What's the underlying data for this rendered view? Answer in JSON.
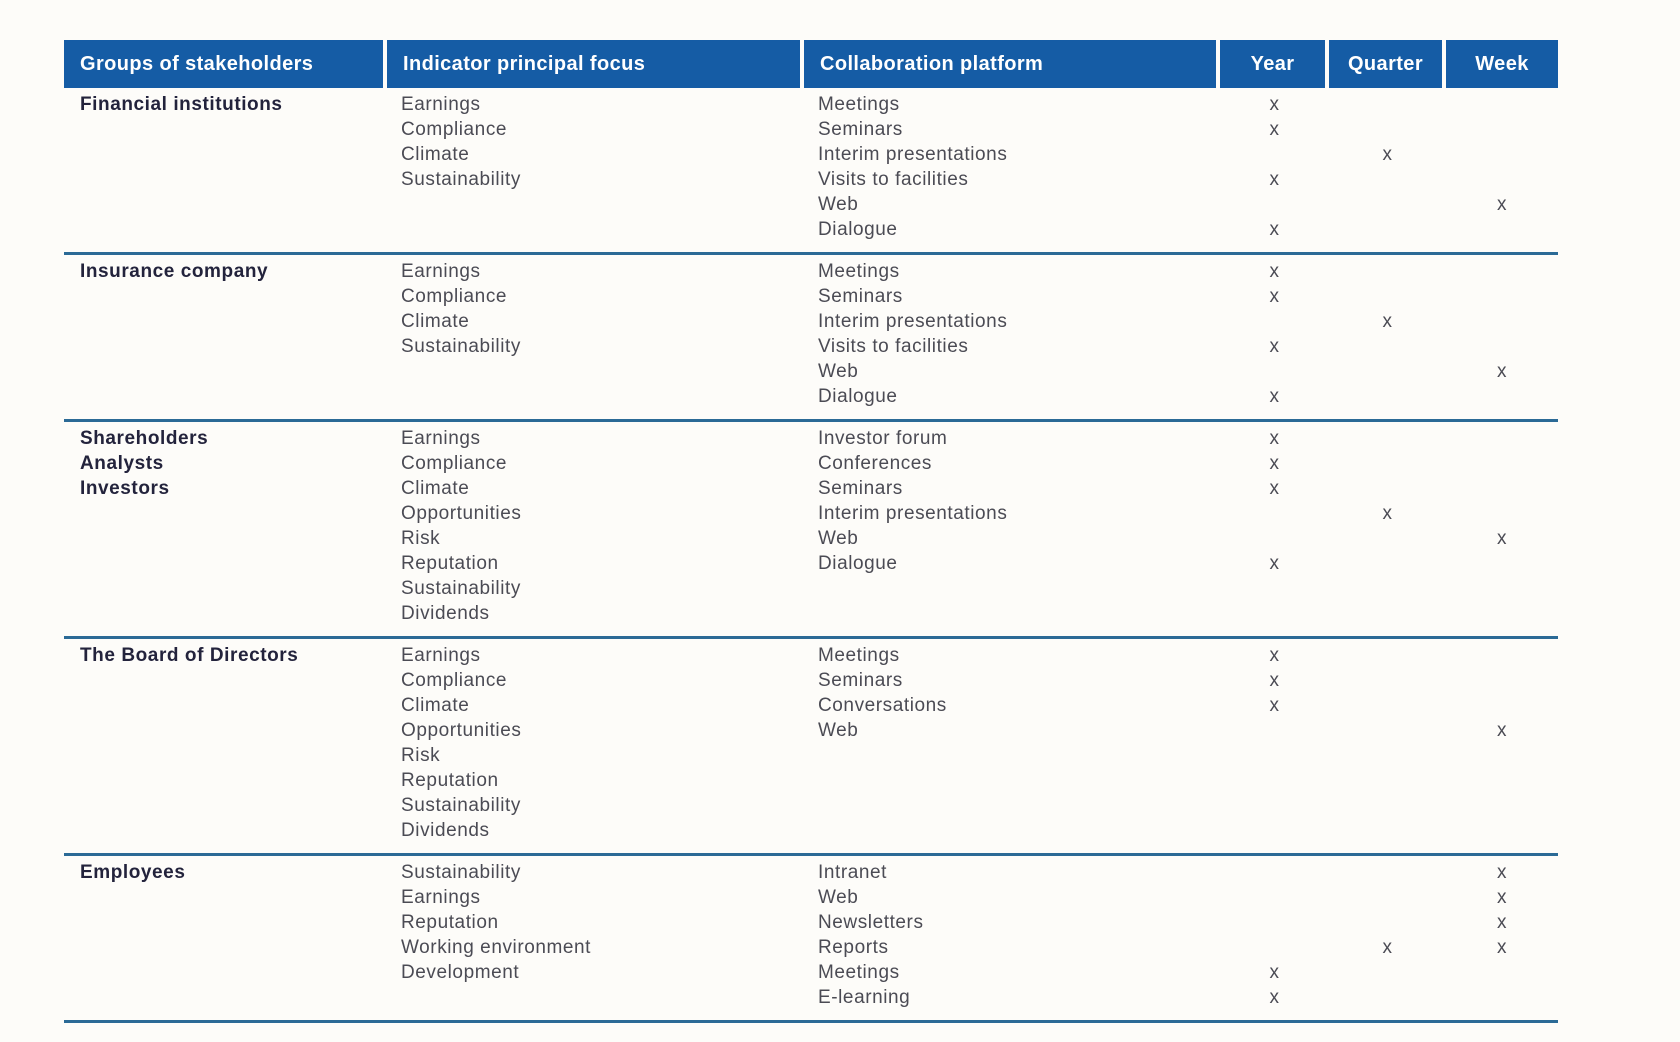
{
  "colors": {
    "header_bg": "#155ca5",
    "header_text": "#ffffff",
    "row_divider": "#2b6a96",
    "body_text": "#4b4b54",
    "group_text": "#23233c"
  },
  "table": {
    "mark": "x",
    "columns": [
      {
        "label": "Groups of stakeholders"
      },
      {
        "label": "Indicator principal focus"
      },
      {
        "label": "Collaboration platform"
      },
      {
        "label": "Year"
      },
      {
        "label": "Quarter"
      },
      {
        "label": "Week"
      }
    ],
    "sections": [
      {
        "group": [
          "Financial institutions"
        ],
        "indicators": [
          "Earnings",
          "Compliance",
          "Climate",
          "Sustainability"
        ],
        "platforms": [
          {
            "name": "Meetings",
            "year": "x",
            "quarter": "",
            "week": ""
          },
          {
            "name": "Seminars",
            "year": "x",
            "quarter": "",
            "week": ""
          },
          {
            "name": "Interim presentations",
            "year": "",
            "quarter": "x",
            "week": ""
          },
          {
            "name": "Visits to facilities",
            "year": "x",
            "quarter": "",
            "week": ""
          },
          {
            "name": "Web",
            "year": "",
            "quarter": "",
            "week": "x"
          },
          {
            "name": "Dialogue",
            "year": "x",
            "quarter": "",
            "week": ""
          }
        ]
      },
      {
        "group": [
          "Insurance company"
        ],
        "indicators": [
          "Earnings",
          "Compliance",
          "Climate",
          "Sustainability"
        ],
        "platforms": [
          {
            "name": "Meetings",
            "year": "x",
            "quarter": "",
            "week": ""
          },
          {
            "name": "Seminars",
            "year": "x",
            "quarter": "",
            "week": ""
          },
          {
            "name": "Interim presentations",
            "year": "",
            "quarter": "x",
            "week": ""
          },
          {
            "name": "Visits to facilities",
            "year": "x",
            "quarter": "",
            "week": ""
          },
          {
            "name": "Web",
            "year": "",
            "quarter": "",
            "week": "x"
          },
          {
            "name": "Dialogue",
            "year": "x",
            "quarter": "",
            "week": ""
          }
        ]
      },
      {
        "group": [
          "Shareholders",
          "Analysts",
          "Investors"
        ],
        "indicators": [
          "Earnings",
          "Compliance",
          "Climate",
          "Opportunities",
          "Risk",
          "Reputation",
          "Sustainability",
          "Dividends"
        ],
        "platforms": [
          {
            "name": "Investor forum",
            "year": "x",
            "quarter": "",
            "week": ""
          },
          {
            "name": "Conferences",
            "year": "x",
            "quarter": "",
            "week": ""
          },
          {
            "name": "Seminars",
            "year": "x",
            "quarter": "",
            "week": ""
          },
          {
            "name": "Interim presentations",
            "year": "",
            "quarter": "x",
            "week": ""
          },
          {
            "name": "Web",
            "year": "",
            "quarter": "",
            "week": "x"
          },
          {
            "name": "Dialogue",
            "year": "x",
            "quarter": "",
            "week": ""
          }
        ]
      },
      {
        "group": [
          "The Board of Directors"
        ],
        "indicators": [
          "Earnings",
          "Compliance",
          "Climate",
          "Opportunities",
          "Risk",
          "Reputation",
          "Sustainability",
          "Dividends"
        ],
        "platforms": [
          {
            "name": "Meetings",
            "year": "x",
            "quarter": "",
            "week": ""
          },
          {
            "name": "Seminars",
            "year": "x",
            "quarter": "",
            "week": ""
          },
          {
            "name": "Conversations",
            "year": "x",
            "quarter": "",
            "week": ""
          },
          {
            "name": "Web",
            "year": "",
            "quarter": "",
            "week": "x"
          }
        ]
      },
      {
        "group": [
          "Employees"
        ],
        "indicators": [
          "Sustainability",
          "Earnings",
          "Reputation",
          "Working environment",
          "Development"
        ],
        "platforms": [
          {
            "name": "Intranet",
            "year": "",
            "quarter": "",
            "week": "x"
          },
          {
            "name": "Web",
            "year": "",
            "quarter": "",
            "week": "x"
          },
          {
            "name": "Newsletters",
            "year": "",
            "quarter": "",
            "week": "x"
          },
          {
            "name": "Reports",
            "year": "",
            "quarter": "x",
            "week": "x"
          },
          {
            "name": "Meetings",
            "year": "x",
            "quarter": "",
            "week": ""
          },
          {
            "name": "E-learning",
            "year": "x",
            "quarter": "",
            "week": ""
          }
        ]
      }
    ]
  }
}
